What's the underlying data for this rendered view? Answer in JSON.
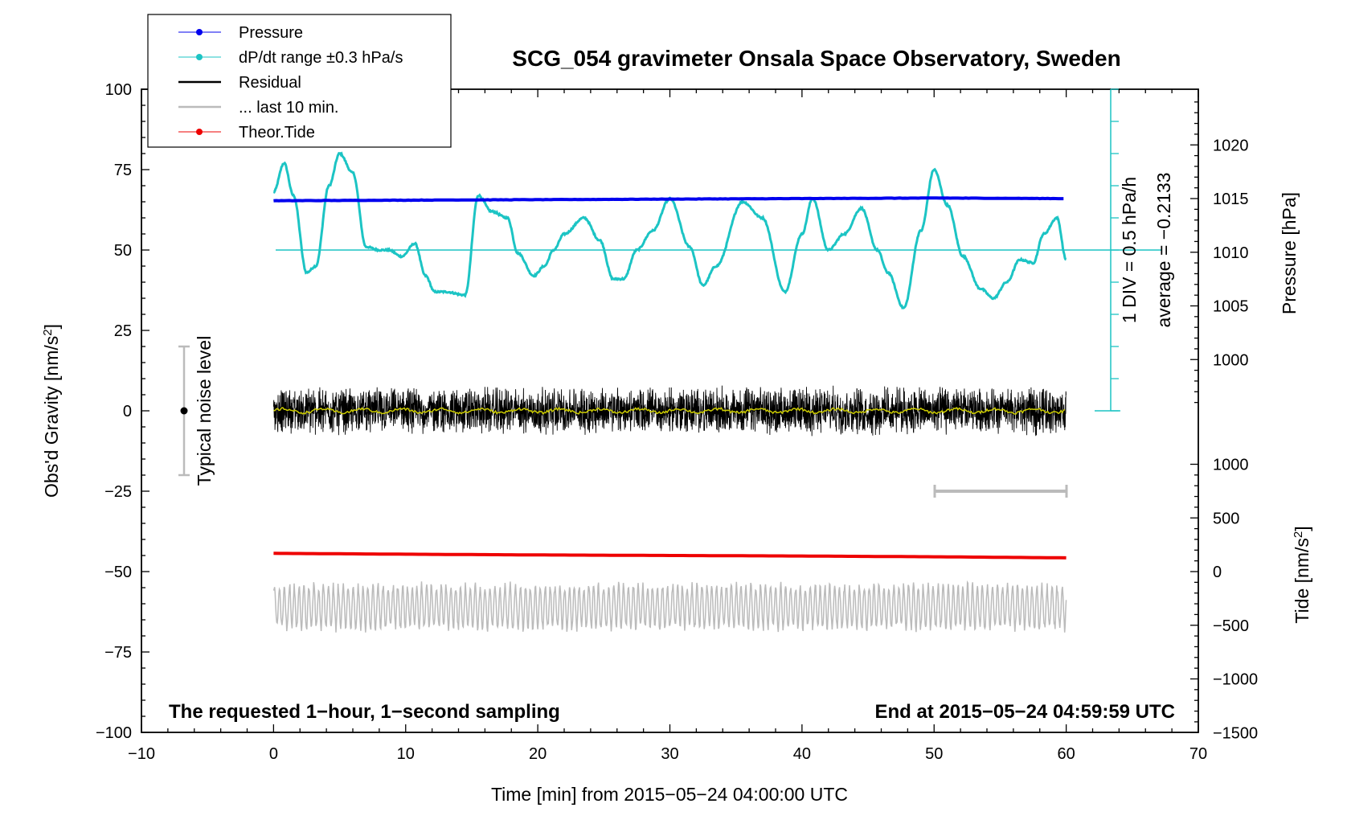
{
  "chart_data": {
    "type": "line",
    "title": "SCG_054 gravimeter Onsala Space Observatory, Sweden",
    "xlabel": "Time [min] from 2015−05−24 04:00:00 UTC",
    "ylabel_left_text": "Obs'd Gravity [nm/s",
    "ylabel_left_sup": "2",
    "ylabel_left_close": "]",
    "ylabel_pressure": "Pressure [hPa]",
    "ylabel_tide_text": "Tide [nm/s",
    "ylabel_tide_sup": "2",
    "ylabel_tide_close": "]",
    "xlim": [
      -10,
      70
    ],
    "ylim_left": [
      -100,
      100
    ],
    "x_ticks": [
      "−10",
      "0",
      "10",
      "20",
      "30",
      "40",
      "50",
      "60",
      "70"
    ],
    "y_left_ticks": [
      "100",
      "75",
      "50",
      "25",
      "0",
      "−25",
      "−50",
      "−75",
      "−100"
    ],
    "pressure_ticks": [
      "1020",
      "1015",
      "1010",
      "1005",
      "1000"
    ],
    "tide_ticks": [
      "1000",
      "500",
      "0",
      "−500",
      "−1000",
      "−1500"
    ],
    "pressure_scale_label": "1 DIV = 0.5 hPa/h",
    "average_label": "average = −0.2133",
    "noise_label": "Typical noise level",
    "noise_level_range": [
      -20,
      20
    ],
    "corner_left": "The requested 1−hour, 1−second sampling",
    "corner_right": "End at 2015−05−24 04:59:59 UTC",
    "legend": [
      "Pressure",
      "dP/dt range ±0.3 hPa/s",
      "Residual",
      "... last 10 min.",
      "Theor.Tide"
    ],
    "legend_placement": "top-left",
    "colors": {
      "pressure": "#0000ee",
      "dpdt": "#1cc4c4",
      "residual": "#000000",
      "residual_smooth": "#cccc00",
      "last10": "#bbbbbb",
      "tide": "#ee0000"
    },
    "series": [
      {
        "name": "Pressure",
        "unit": "hPa",
        "x": [
          0,
          10,
          20,
          30,
          40,
          50,
          60
        ],
        "values": [
          1014.8,
          1014.85,
          1014.9,
          1014.95,
          1015.0,
          1015.05,
          1015.0
        ]
      },
      {
        "name": "dP/dt range ±0.3 hPa/s",
        "unit": "Obs'd Gravity scale",
        "x": [
          0,
          0.8,
          1.5,
          2.5,
          3.2,
          4.2,
          5,
          6,
          7,
          8,
          8.7,
          9.7,
          10.7,
          11.5,
          12.2,
          13,
          14.5,
          15.5,
          16.5,
          17.7,
          18.5,
          19.7,
          20.5,
          21.2,
          22,
          23.5,
          24.7,
          25.7,
          26.5,
          27.5,
          28.7,
          30,
          31.5,
          32.5,
          33.5,
          35.5,
          37,
          38.7,
          40,
          40.8,
          42,
          43.2,
          44.5,
          45.7,
          46.5,
          47.7,
          49,
          50,
          51,
          52.2,
          53.5,
          54.5,
          55.5,
          56.5,
          57.5,
          58.3,
          59.3,
          60
        ],
        "values": [
          68,
          77,
          67,
          43,
          45,
          70,
          80,
          74,
          51,
          50,
          50,
          48,
          52,
          42,
          37,
          37,
          36,
          67,
          62,
          60,
          49,
          42,
          45,
          50,
          55,
          60,
          53,
          41,
          41,
          50,
          56,
          66,
          51,
          39,
          45,
          65,
          60,
          37,
          55,
          66,
          50,
          55,
          63,
          50,
          43,
          32,
          56,
          75,
          64,
          48,
          38,
          35,
          40,
          47,
          46,
          55,
          60,
          47
        ]
      },
      {
        "name": "Residual",
        "unit": "nm/s2",
        "amplitude_range": [
          -8,
          9
        ],
        "description_mean": 0
      },
      {
        "name": "... last 10 min.",
        "unit": "nm/s2",
        "offset": -61,
        "amplitude_range": [
          -70,
          -53
        ]
      },
      {
        "name": "Theor.Tide",
        "unit": "nm/s2",
        "x": [
          0,
          10,
          20,
          30,
          40,
          50,
          60
        ],
        "values": [
          170,
          162,
          155,
          150,
          145,
          138,
          128
        ]
      }
    ]
  }
}
